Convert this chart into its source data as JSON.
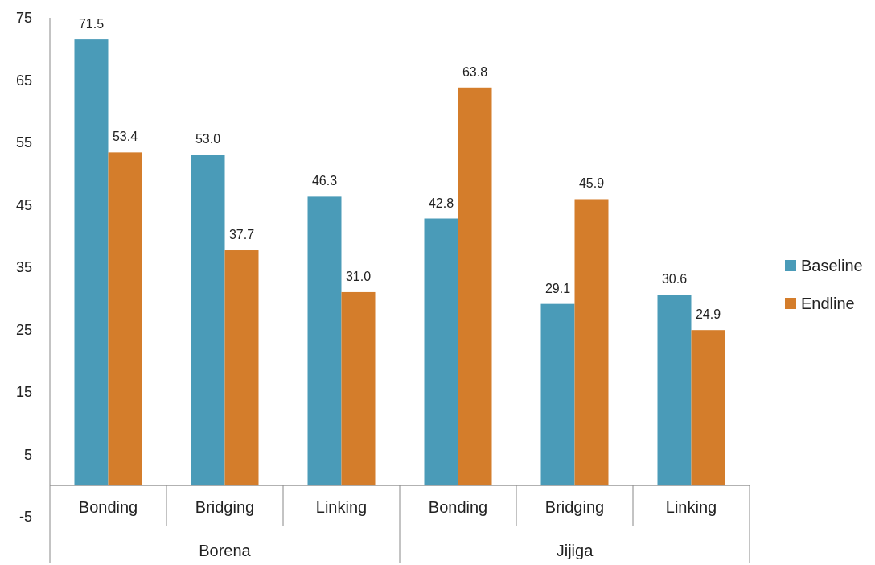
{
  "chart_data": {
    "type": "bar",
    "categories": [
      "Bonding",
      "Bridging",
      "Linking",
      "Bonding",
      "Bridging",
      "Linking"
    ],
    "series": [
      {
        "name": "Baseline",
        "color": "#4a9bb8",
        "values": [
          71.5,
          53.0,
          46.3,
          42.8,
          29.1,
          30.6
        ],
        "value_labels": [
          "71.5",
          "53.0",
          "46.3",
          "42.8",
          "29.1",
          "30.6"
        ]
      },
      {
        "name": "Endline",
        "color": "#d47d2b",
        "values": [
          53.4,
          37.7,
          31.0,
          63.8,
          45.9,
          24.9
        ],
        "value_labels": [
          "53.4",
          "37.7",
          "31.0",
          "63.8",
          "45.9",
          "24.9"
        ]
      }
    ],
    "ylim": [
      -12.5,
      75
    ],
    "yticks": [
      -5,
      5,
      15,
      25,
      35,
      45,
      55,
      65,
      75
    ],
    "grid": false,
    "legend": "right",
    "annotations": [
      "Borena",
      "Jijiga"
    ]
  }
}
